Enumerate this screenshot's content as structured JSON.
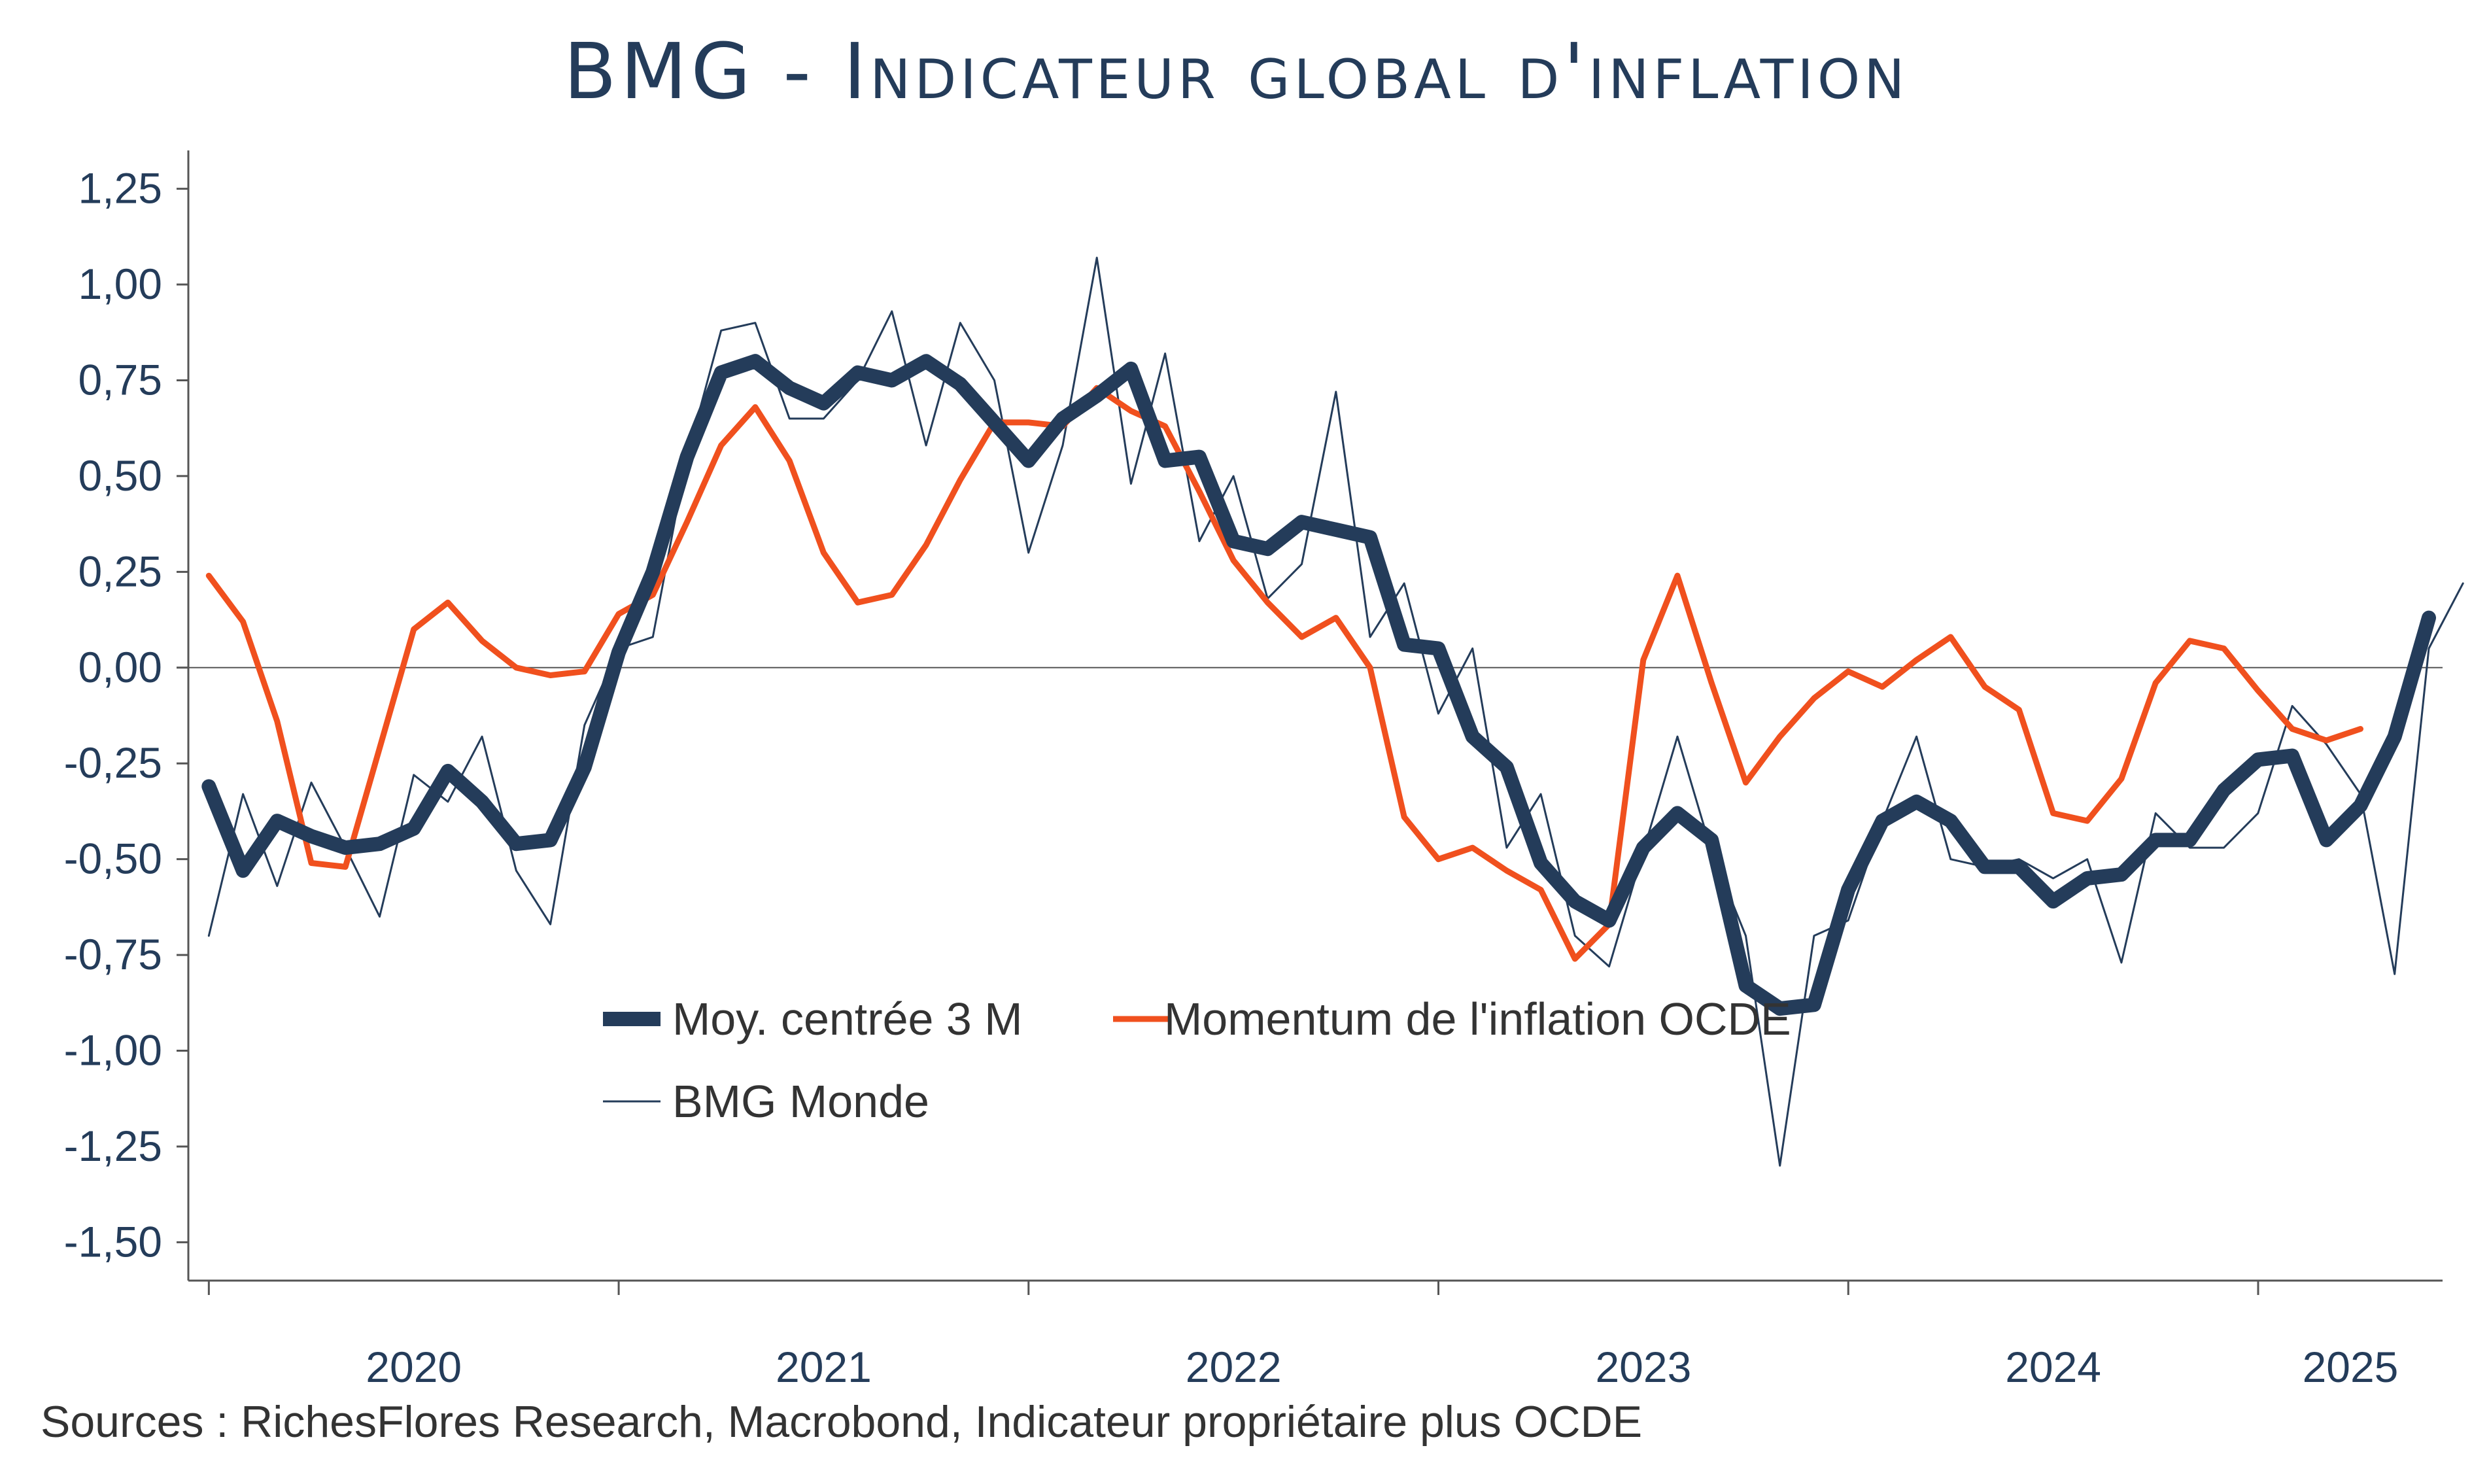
{
  "title": "BMG - Indicateur global d'inflation",
  "source": "Sources : RichesFlores Research, Macrobond, Indicateur propriétaire plus OCDE",
  "colors": {
    "moy": "#243c5a",
    "momentum": "#f0501e",
    "bmg": "#243c5a",
    "axis": "#555555"
  },
  "chart_data": {
    "type": "line",
    "title": "BMG - Indicateur global d'inflation",
    "xlabel": "",
    "ylabel": "",
    "ylim": [
      -1.6,
      1.35
    ],
    "yticks": [
      "1,25",
      "1,00",
      "0,75",
      "0,50",
      "0,25",
      "0,00",
      "-0,25",
      "-0,50",
      "-0,75",
      "-1,00",
      "-1,25",
      "-1,50"
    ],
    "ytick_values": [
      1.25,
      1.0,
      0.75,
      0.5,
      0.25,
      0.0,
      -0.25,
      -0.5,
      -0.75,
      -1.0,
      -1.25,
      -1.5
    ],
    "xticks": [
      "2020",
      "2021",
      "2022",
      "2023",
      "2024",
      "2025"
    ],
    "x_start": 2019.95,
    "x_end": 2025.45,
    "legend": "center",
    "series": [
      {
        "name": "Moy. centrée 3 M",
        "key": "moy",
        "x_start": 2020.0,
        "x_step": 0.08333,
        "values": [
          -0.31,
          -0.53,
          -0.4,
          -0.44,
          -0.47,
          -0.46,
          -0.42,
          -0.27,
          -0.35,
          -0.46,
          -0.45,
          -0.26,
          0.04,
          0.25,
          0.55,
          0.77,
          0.8,
          0.73,
          0.69,
          0.77,
          0.75,
          0.8,
          0.74,
          0.64,
          0.54,
          0.65,
          0.71,
          0.78,
          0.54,
          0.55,
          0.33,
          0.31,
          0.38,
          0.36,
          0.34,
          0.06,
          0.05,
          -0.18,
          -0.26,
          -0.51,
          -0.61,
          -0.66,
          -0.47,
          -0.38,
          -0.45,
          -0.83,
          -0.89,
          -0.88,
          -0.58,
          -0.4,
          -0.35,
          -0.4,
          -0.52,
          -0.52,
          -0.61,
          -0.55,
          -0.54,
          -0.45,
          -0.45,
          -0.32,
          -0.24,
          -0.23,
          -0.45,
          -0.36,
          -0.18,
          0.13
        ]
      },
      {
        "name": "Momentum de l'inflation OCDE",
        "key": "momentum",
        "x_start": 2020.0,
        "x_step": 0.08333,
        "values": [
          0.24,
          0.12,
          -0.14,
          -0.51,
          -0.52,
          -0.21,
          0.1,
          0.17,
          0.07,
          0.0,
          -0.02,
          -0.01,
          0.14,
          0.19,
          0.38,
          0.58,
          0.68,
          0.54,
          0.3,
          0.17,
          0.19,
          0.32,
          0.49,
          0.64,
          0.64,
          0.63,
          0.73,
          0.67,
          0.63,
          0.46,
          0.28,
          0.17,
          0.08,
          0.13,
          0.0,
          -0.39,
          -0.5,
          -0.47,
          -0.53,
          -0.58,
          -0.76,
          -0.67,
          0.02,
          0.24,
          -0.04,
          -0.3,
          -0.18,
          -0.08,
          -0.01,
          -0.05,
          0.02,
          0.08,
          -0.05,
          -0.11,
          -0.38,
          -0.4,
          -0.29,
          -0.04,
          0.07,
          0.05,
          -0.06,
          -0.16,
          -0.19,
          -0.16
        ]
      },
      {
        "name": "BMG Monde",
        "key": "bmg",
        "x_start": 2020.0,
        "x_step": 0.08333,
        "values": [
          -0.7,
          -0.33,
          -0.57,
          -0.3,
          -0.47,
          -0.65,
          -0.28,
          -0.35,
          -0.18,
          -0.53,
          -0.67,
          -0.15,
          0.05,
          0.08,
          0.55,
          0.88,
          0.9,
          0.65,
          0.65,
          0.75,
          0.93,
          0.58,
          0.9,
          0.75,
          0.3,
          0.58,
          1.07,
          0.48,
          0.82,
          0.33,
          0.5,
          0.18,
          0.27,
          0.72,
          0.08,
          0.22,
          -0.12,
          0.05,
          -0.47,
          -0.33,
          -0.7,
          -0.78,
          -0.48,
          -0.18,
          -0.48,
          -0.7,
          -1.3,
          -0.7,
          -0.66,
          -0.4,
          -0.18,
          -0.5,
          -0.52,
          -0.5,
          -0.55,
          -0.5,
          -0.77,
          -0.38,
          -0.47,
          -0.47,
          -0.38,
          -0.1,
          -0.2,
          -0.33,
          -0.8,
          0.05,
          0.22
        ]
      }
    ]
  }
}
